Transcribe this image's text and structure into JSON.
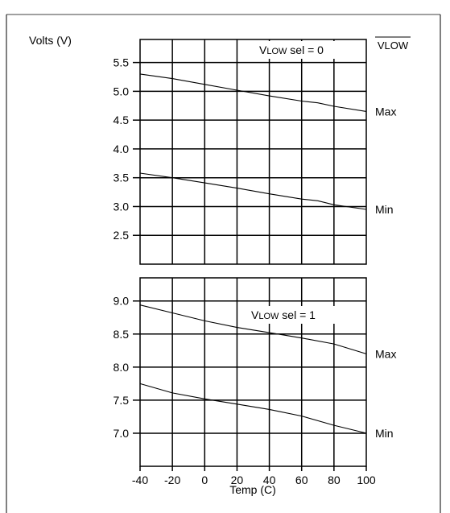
{
  "chart_data": [
    {
      "type": "line",
      "ylabel": "Volts (V)",
      "corner_label": "VLOW",
      "annotation": {
        "prefix": "V",
        "subscript": "LOW",
        "suffix": " sel = 0"
      },
      "xlim": [
        -40,
        100
      ],
      "ylim": [
        2.0,
        5.9
      ],
      "yticks": [
        5.5,
        5.0,
        4.5,
        4.0,
        3.5,
        3.0,
        2.5
      ],
      "ytick_labels": [
        "5.5",
        "5.0",
        "4.5",
        "4.0",
        "3.5",
        "3.0",
        "2.5"
      ],
      "grid": true,
      "series": [
        {
          "name": "Max",
          "x": [
            -40,
            -20,
            0,
            20,
            40,
            60,
            70,
            80,
            100
          ],
          "y": [
            5.3,
            5.22,
            5.12,
            5.02,
            4.92,
            4.83,
            4.8,
            4.74,
            4.65
          ]
        },
        {
          "name": "Min",
          "x": [
            -40,
            -20,
            0,
            20,
            40,
            60,
            70,
            80,
            100
          ],
          "y": [
            3.58,
            3.5,
            3.41,
            3.32,
            3.22,
            3.13,
            3.1,
            3.03,
            2.95
          ]
        }
      ]
    },
    {
      "type": "line",
      "xlabel": "Temp (C)",
      "annotation": {
        "prefix": "V",
        "subscript": "LOW",
        "suffix": " sel = 1"
      },
      "xlim": [
        -40,
        100
      ],
      "ylim": [
        6.5,
        9.35
      ],
      "xticks": [
        -40,
        -20,
        0,
        20,
        40,
        60,
        80,
        100
      ],
      "xtick_labels": [
        "-40",
        "-20",
        "0",
        "20",
        "40",
        "60",
        "80",
        "100"
      ],
      "yticks": [
        9.0,
        8.5,
        8.0,
        7.5,
        7.0
      ],
      "ytick_labels": [
        "9.0",
        "8.5",
        "8.0",
        "7.5",
        "7.0"
      ],
      "grid": true,
      "series": [
        {
          "name": "Max",
          "x": [
            -40,
            -20,
            0,
            20,
            40,
            60,
            80,
            100
          ],
          "y": [
            8.94,
            8.82,
            8.7,
            8.6,
            8.52,
            8.44,
            8.35,
            8.2
          ]
        },
        {
          "name": "Min",
          "x": [
            -40,
            -20,
            0,
            20,
            40,
            60,
            80,
            100
          ],
          "y": [
            7.75,
            7.61,
            7.52,
            7.44,
            7.36,
            7.26,
            7.12,
            7.0
          ]
        }
      ]
    }
  ]
}
